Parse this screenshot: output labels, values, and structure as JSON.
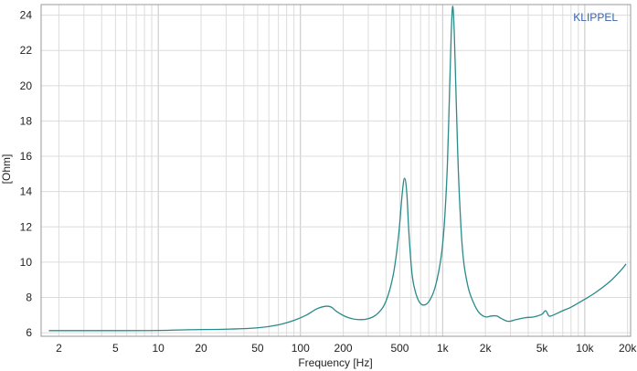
{
  "chart_data": {
    "type": "line",
    "xscale": "log",
    "xlim": [
      1.5,
      21000
    ],
    "ylim": [
      5.8,
      24.6
    ],
    "xlabel": "Frequency [Hz]",
    "ylabel": "[Ohm]",
    "watermark": "KLIPPEL",
    "grid": true,
    "x_ticks": [
      {
        "value": 2,
        "label": "2"
      },
      {
        "value": 5,
        "label": "5"
      },
      {
        "value": 10,
        "label": "10"
      },
      {
        "value": 20,
        "label": "20"
      },
      {
        "value": 50,
        "label": "50"
      },
      {
        "value": 100,
        "label": "100"
      },
      {
        "value": 200,
        "label": "200"
      },
      {
        "value": 500,
        "label": "500"
      },
      {
        "value": 1000,
        "label": "1k"
      },
      {
        "value": 2000,
        "label": "2k"
      },
      {
        "value": 5000,
        "label": "5k"
      },
      {
        "value": 10000,
        "label": "10k"
      },
      {
        "value": 20000,
        "label": "20k"
      }
    ],
    "y_ticks": [
      {
        "value": 6,
        "label": "6"
      },
      {
        "value": 8,
        "label": "8"
      },
      {
        "value": 10,
        "label": "10"
      },
      {
        "value": 12,
        "label": "12"
      },
      {
        "value": 14,
        "label": "14"
      },
      {
        "value": 16,
        "label": "16"
      },
      {
        "value": 18,
        "label": "18"
      },
      {
        "value": 20,
        "label": "20"
      },
      {
        "value": 22,
        "label": "22"
      },
      {
        "value": 24,
        "label": "24"
      }
    ],
    "colors": {
      "line": "#2a8a8a",
      "grid": "#dcdcdc",
      "grid_decade": "#c4c4c4",
      "axis": "#9a9a9a",
      "watermark": "#3a63a8"
    },
    "series": [
      {
        "x": [
          1.7,
          5,
          10,
          16,
          20,
          30,
          50,
          70,
          90,
          110,
          130,
          150,
          165,
          180,
          210,
          250,
          300,
          350,
          400,
          450,
          490,
          520,
          540,
          560,
          580,
          610,
          650,
          700,
          760,
          820,
          880,
          950,
          1000,
          1040,
          1080,
          1120,
          1150,
          1180,
          1210,
          1250,
          1300,
          1380,
          1500,
          1650,
          1800,
          2000,
          2200,
          2400,
          2600,
          2900,
          3300,
          3800,
          4400,
          5000,
          5300,
          5600,
          6000,
          7000,
          8000,
          10000,
          12000,
          15000,
          18000,
          19500
        ],
        "y": [
          6.12,
          6.12,
          6.13,
          6.17,
          6.18,
          6.2,
          6.28,
          6.45,
          6.7,
          7.0,
          7.35,
          7.5,
          7.45,
          7.2,
          6.9,
          6.75,
          6.8,
          7.1,
          7.8,
          9.3,
          11.5,
          13.9,
          14.75,
          13.9,
          11.6,
          9.3,
          8.2,
          7.65,
          7.6,
          7.9,
          8.5,
          9.7,
          11.0,
          12.8,
          15.5,
          19.8,
          23.0,
          24.5,
          22.8,
          18.8,
          14.5,
          10.7,
          8.7,
          7.7,
          7.15,
          6.9,
          6.95,
          6.95,
          6.8,
          6.65,
          6.75,
          6.85,
          6.9,
          7.05,
          7.25,
          6.95,
          7.0,
          7.25,
          7.45,
          7.9,
          8.3,
          8.9,
          9.55,
          9.9
        ]
      }
    ]
  }
}
